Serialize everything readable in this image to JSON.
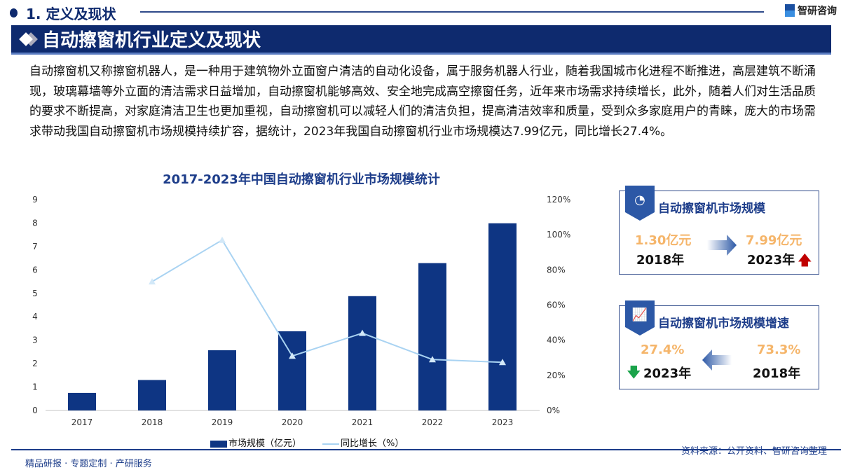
{
  "section": {
    "title": "1. 定义及现状",
    "logo": "智研咨询"
  },
  "banner": {
    "title": "自动擦窗机行业定义及现状"
  },
  "paragraph": "自动擦窗机又称擦窗机器人，是一种用于建筑物外立面窗户清洁的自动化设备，属于服务机器人行业，随着我国城市化进程不断推进，高层建筑不断涌现，玻璃幕墙等外立面的清洁需求日益增加，自动擦窗机能够高效、安全地完成高空擦窗任务，近年来市场需求持续增长，此外，随着人们对生活品质的要求不断提高，对家庭清洁卫生也更加重视，自动擦窗机可以减轻人们的清洁负担，提高清洁效率和质量，受到众多家庭用户的青睐，庞大的市场需求带动我国自动擦窗机市场规模持续扩容，据统计，2023年我国自动擦窗机行业市场规模达7.99亿元，同比增长27.4%。",
  "chart_data": {
    "type": "bar+line",
    "title": "2017-2023年中国自动擦窗机行业市场规模统计",
    "categories": [
      "2017",
      "2018",
      "2019",
      "2020",
      "2021",
      "2022",
      "2023"
    ],
    "series": [
      {
        "name": "市场规模（亿元）",
        "type": "bar",
        "axis": "left",
        "values": [
          0.75,
          1.3,
          2.57,
          3.38,
          4.88,
          6.29,
          7.99
        ],
        "color": "#0e3583"
      },
      {
        "name": "同比增长（%）",
        "type": "line",
        "axis": "right",
        "values": [
          null,
          73.3,
          97,
          31,
          44,
          29,
          27.4
        ],
        "color": "#a9d3f2"
      }
    ],
    "left_axis": {
      "ylim": [
        0,
        9
      ],
      "ticks": [
        "0",
        "1",
        "2",
        "3",
        "4",
        "5",
        "6",
        "7",
        "8",
        "9"
      ]
    },
    "right_axis": {
      "ylim": [
        0,
        120
      ],
      "ticks": [
        "0%",
        "20%",
        "40%",
        "60%",
        "80%",
        "100%",
        "120%"
      ]
    },
    "grid": false,
    "legend": "bottom"
  },
  "cards": [
    {
      "title": "自动擦窗机市场规模",
      "icon": "chart-pie-icon",
      "from_value": "1.30亿元",
      "from_year": "2018年",
      "to_value": "7.99亿元",
      "to_year": "2023年",
      "trend": "up",
      "trend_color": "#c00000"
    },
    {
      "title": "自动擦窗机市场规模增速",
      "icon": "growth-chart-icon",
      "from_value": "73.3%",
      "from_year": "2018年",
      "to_value": "27.4%",
      "to_year": "2023年",
      "trend": "down",
      "trend_color": "#1aa34a"
    }
  ],
  "footer": {
    "slogan": "精品研报 · 专题定制 · 产研服务",
    "source": "资料来源：公开资料、智研咨询整理"
  }
}
